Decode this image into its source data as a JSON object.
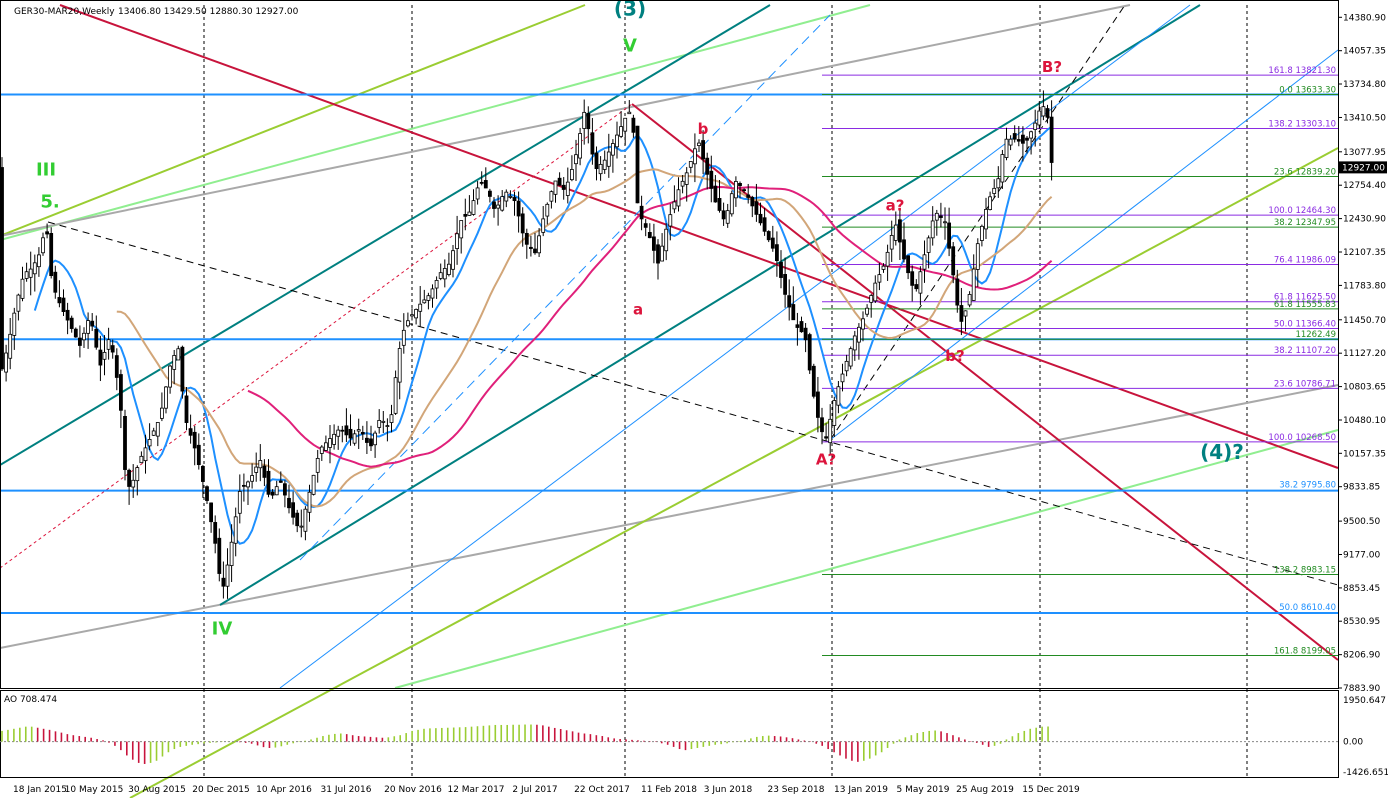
{
  "header": {
    "symbol": "GER30-MAR20,Weekly",
    "ohlc": "13406.80 13429.50 12880.30 12927.00"
  },
  "indicator": {
    "title": "AO 708.474",
    "axis_labels": [
      "1950.647",
      "0.00",
      "-1426.651"
    ]
  },
  "colors": {
    "background": "#ffffff",
    "bull_candle": "#000000",
    "bear_candle": "#000000",
    "wave_red": "#dc143c",
    "wave_green": "#32cd32",
    "wave_teal": "#008080",
    "horizontal_blue": "#1e90ff",
    "channel_crimson": "#c8143c",
    "fib_purple": "#8a2be2",
    "fib_green": "#228b22"
  },
  "chart_data": {
    "type": "candlestick",
    "timeframe": "Weekly",
    "ylim": [
      7883.9,
      14500
    ],
    "y_ticks": [
      "14380.90",
      "14057.35",
      "13734.80",
      "13410.50",
      "13077.95",
      "12754.40",
      "12430.90",
      "12107.35",
      "11783.80",
      "11450.70",
      "11127.20",
      "10803.65",
      "10480.10",
      "10157.35",
      "9833.85",
      "9500.50",
      "9177.00",
      "8853.45",
      "8530.95",
      "8206.90",
      "7883.90"
    ],
    "current_price_label": "12927.00",
    "x_ticks": [
      "18 Jan 2015",
      "10 May 2015",
      "30 Aug 2015",
      "20 Dec 2015",
      "10 Apr 2016",
      "31 Jul 2016",
      "20 Nov 2016",
      "12 Mar 2017",
      "2 Jul 2017",
      "22 Oct 2017",
      "11 Feb 2018",
      "3 Jun 2018",
      "23 Sep 2018",
      "13 Jan 2019",
      "5 May 2019",
      "25 Aug 2019",
      "15 Dec 2019"
    ],
    "price_path": [
      [
        0,
        10900
      ],
      [
        8,
        11200
      ],
      [
        16,
        11600
      ],
      [
        24,
        11900
      ],
      [
        32,
        11950
      ],
      [
        40,
        12100
      ],
      [
        46,
        12390
      ],
      [
        52,
        11800
      ],
      [
        60,
        11600
      ],
      [
        70,
        11400
      ],
      [
        80,
        11200
      ],
      [
        90,
        11500
      ],
      [
        100,
        11000
      ],
      [
        110,
        11300
      ],
      [
        120,
        10700
      ],
      [
        125,
        10000
      ],
      [
        130,
        9800
      ],
      [
        140,
        10100
      ],
      [
        150,
        10300
      ],
      [
        160,
        10500
      ],
      [
        170,
        11000
      ],
      [
        178,
        11200
      ],
      [
        185,
        10500
      ],
      [
        195,
        10200
      ],
      [
        205,
        9800
      ],
      [
        215,
        9300
      ],
      [
        222,
        8800
      ],
      [
        230,
        9200
      ],
      [
        240,
        9800
      ],
      [
        250,
        9900
      ],
      [
        260,
        10100
      ],
      [
        270,
        9700
      ],
      [
        280,
        9900
      ],
      [
        290,
        9600
      ],
      [
        300,
        9400
      ],
      [
        310,
        9800
      ],
      [
        320,
        10200
      ],
      [
        330,
        10300
      ],
      [
        340,
        10400
      ],
      [
        350,
        10300
      ],
      [
        360,
        10400
      ],
      [
        370,
        10200
      ],
      [
        380,
        10500
      ],
      [
        390,
        10400
      ],
      [
        398,
        11100
      ],
      [
        405,
        11400
      ],
      [
        412,
        11500
      ],
      [
        420,
        11600
      ],
      [
        430,
        11700
      ],
      [
        440,
        11900
      ],
      [
        450,
        12000
      ],
      [
        460,
        12400
      ],
      [
        470,
        12500
      ],
      [
        480,
        12800
      ],
      [
        488,
        12700
      ],
      [
        495,
        12500
      ],
      [
        505,
        12700
      ],
      [
        515,
        12600
      ],
      [
        525,
        12200
      ],
      [
        535,
        12100
      ],
      [
        545,
        12500
      ],
      [
        555,
        12800
      ],
      [
        565,
        12700
      ],
      [
        575,
        13000
      ],
      [
        585,
        13500
      ],
      [
        595,
        12900
      ],
      [
        605,
        13000
      ],
      [
        615,
        13200
      ],
      [
        625,
        13400
      ],
      [
        632,
        13500
      ],
      [
        638,
        12500
      ],
      [
        648,
        12300
      ],
      [
        658,
        12000
      ],
      [
        668,
        12400
      ],
      [
        678,
        12700
      ],
      [
        688,
        12900
      ],
      [
        698,
        13200
      ],
      [
        706,
        12900
      ],
      [
        715,
        12600
      ],
      [
        725,
        12400
      ],
      [
        735,
        12800
      ],
      [
        745,
        12700
      ],
      [
        755,
        12500
      ],
      [
        765,
        12300
      ],
      [
        775,
        12100
      ],
      [
        785,
        11700
      ],
      [
        795,
        11400
      ],
      [
        805,
        11300
      ],
      [
        812,
        10800
      ],
      [
        820,
        10400
      ],
      [
        826,
        10300
      ],
      [
        835,
        10700
      ],
      [
        845,
        11000
      ],
      [
        855,
        11300
      ],
      [
        865,
        11500
      ],
      [
        875,
        11800
      ],
      [
        885,
        12000
      ],
      [
        895,
        12400
      ],
      [
        905,
        12000
      ],
      [
        915,
        11700
      ],
      [
        925,
        12100
      ],
      [
        935,
        12500
      ],
      [
        945,
        12400
      ],
      [
        953,
        11900
      ],
      [
        960,
        11400
      ],
      [
        968,
        11600
      ],
      [
        978,
        12200
      ],
      [
        988,
        12600
      ],
      [
        998,
        12800
      ],
      [
        1005,
        13200
      ],
      [
        1015,
        13200
      ],
      [
        1025,
        13150
      ],
      [
        1035,
        13350
      ],
      [
        1042,
        13550
      ],
      [
        1048,
        13400
      ],
      [
        1052,
        12927
      ]
    ],
    "fib_levels": [
      {
        "label": "161.8   13821.30",
        "value": 13821.3,
        "color": "#8a2be2"
      },
      {
        "label": "0.0   13633.30",
        "value": 13633.3,
        "color": "#228b22"
      },
      {
        "label": "138.2   13303.10",
        "value": 13303.1,
        "color": "#8a2be2"
      },
      {
        "label": "23.6   12839.20",
        "value": 12839.2,
        "color": "#228b22"
      },
      {
        "label": "100.0   12464.30",
        "value": 12464.3,
        "color": "#8a2be2"
      },
      {
        "label": "38.2   12347.95",
        "value": 12347.95,
        "color": "#228b22"
      },
      {
        "label": "76.4   11986.09",
        "value": 11986.09,
        "color": "#8a2be2"
      },
      {
        "label": "61.8   11625.50",
        "value": 11625.5,
        "color": "#8a2be2"
      },
      {
        "label": "61.8   11555.83",
        "value": 11555.83,
        "color": "#228b22"
      },
      {
        "label": "50.0   11366.40",
        "value": 11366.4,
        "color": "#8a2be2"
      },
      {
        "label": "11262.49",
        "value": 11262.49,
        "color": "#228b22"
      },
      {
        "label": "38.2   11107.20",
        "value": 11107.2,
        "color": "#8a2be2"
      },
      {
        "label": "23.6   10786.71",
        "value": 10786.71,
        "color": "#8a2be2"
      },
      {
        "label": "100.0   10268.50",
        "value": 10268.5,
        "color": "#8a2be2"
      },
      {
        "label": "138.2   8983.15",
        "value": 8983.15,
        "color": "#228b22"
      },
      {
        "label": "161.8   8199.05",
        "value": 8199.05,
        "color": "#228b22"
      }
    ],
    "horizontal_levels": [
      {
        "value": 13633.3,
        "label": ""
      },
      {
        "value": 11262.49,
        "label": ""
      },
      {
        "value": 9795.8,
        "label": "38.2   9795.80"
      },
      {
        "value": 8610.4,
        "label": "50.0   8610.40"
      }
    ],
    "wave_labels": [
      {
        "text": "III",
        "color": "#32cd32",
        "x": 46,
        "y": 12850
      },
      {
        "text": "5.",
        "color": "#32cd32",
        "x": 50,
        "y": 12540
      },
      {
        "text": "(3)",
        "color": "#008080",
        "x": 630,
        "y": 14400
      },
      {
        "text": "V",
        "color": "#32cd32",
        "x": 630,
        "y": 14050
      },
      {
        "text": "a",
        "color": "#dc143c",
        "x": 638,
        "y": 11500
      },
      {
        "text": "b",
        "color": "#dc143c",
        "x": 703,
        "y": 13250
      },
      {
        "text": "IV",
        "color": "#32cd32",
        "x": 222,
        "y": 8400
      },
      {
        "text": "A?",
        "color": "#dc143c",
        "x": 826,
        "y": 10050
      },
      {
        "text": "a?",
        "color": "#dc143c",
        "x": 895,
        "y": 12510
      },
      {
        "text": "b?",
        "color": "#dc143c",
        "x": 955,
        "y": 11050
      },
      {
        "text": "B?",
        "color": "#dc143c",
        "x": 1052,
        "y": 13850
      },
      {
        "text": "(4)?",
        "color": "#008080",
        "x": 1222,
        "y": 10100
      }
    ],
    "ao": {
      "ylim": [
        -1426.651,
        1950.647
      ],
      "values": [
        500,
        550,
        600,
        650,
        700,
        700,
        650,
        600,
        550,
        480,
        420,
        350,
        300,
        260,
        220,
        180,
        120,
        60,
        -50,
        -200,
        -400,
        -650,
        -850,
        -1000,
        -1050,
        -1000,
        -900,
        -700,
        -500,
        -350,
        -250,
        -200,
        -150,
        -120,
        -90,
        -60,
        -40,
        -20,
        -10,
        0,
        -30,
        -60,
        -100,
        -180,
        -260,
        -300,
        -280,
        -220,
        -150,
        -80,
        -20,
        40,
        100,
        180,
        260,
        320,
        360,
        380,
        350,
        300,
        260,
        240,
        220,
        200,
        180,
        200,
        250,
        300,
        400,
        500,
        550,
        600,
        620,
        630,
        640,
        650,
        660,
        670,
        680,
        700,
        720,
        740,
        760,
        780,
        780,
        780,
        790,
        790,
        800,
        800,
        790,
        760,
        700,
        640,
        590,
        530,
        480,
        420,
        380,
        350,
        300,
        260,
        200,
        150,
        120,
        100,
        80,
        60,
        40,
        20,
        -20,
        -80,
        -150,
        -250,
        -350,
        -400,
        -350,
        -300,
        -250,
        -200,
        -150,
        -120,
        -80,
        -30,
        20,
        80,
        150,
        220,
        260,
        280,
        260,
        240,
        200,
        160,
        100,
        50,
        -20,
        -100,
        -200,
        -350,
        -500,
        -650,
        -800,
        -900,
        -950,
        -900,
        -800,
        -650,
        -500,
        -300,
        -100,
        100,
        200,
        300,
        400,
        450,
        500,
        520,
        480,
        400,
        300,
        200,
        100,
        20,
        -60,
        -150,
        -250,
        -200,
        -100,
        100,
        250,
        400,
        500,
        600,
        650,
        700,
        708
      ]
    }
  }
}
